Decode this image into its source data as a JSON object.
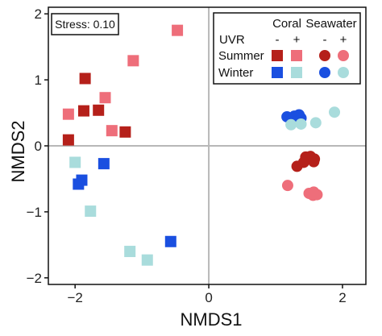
{
  "chart_data": {
    "type": "scatter",
    "title": "",
    "xlabel": "NMDS1",
    "ylabel": "NMDS2",
    "xlim": [
      -2.4,
      2.35
    ],
    "ylim": [
      -2.1,
      2.1
    ],
    "xticks": [
      -2,
      0,
      2
    ],
    "yticks": [
      -2,
      -1,
      0,
      1,
      2
    ],
    "tick_labels": {
      "x": [
        "−2",
        "0",
        "2"
      ],
      "y": [
        "−2",
        "−1",
        "0",
        "1",
        "2"
      ]
    },
    "grid": false,
    "reference_lines": {
      "x": 0,
      "y": 0
    },
    "annotation": "Stress: 0.10",
    "legend": {
      "placement": "top-right",
      "group_headers": [
        "Coral",
        "Seawater"
      ],
      "uvr_label": "UVR",
      "uvr_levels": [
        "-",
        "+"
      ],
      "season_labels": [
        "Summer",
        "Winter"
      ]
    },
    "colors": {
      "summer_uvr_minus": "#b5201a",
      "summer_uvr_plus": "#ee6e7a",
      "winter_uvr_minus": "#1a4fe0",
      "winter_uvr_plus": "#a9dcdc"
    },
    "series": [
      {
        "group": "Coral",
        "season": "Summer",
        "uvr": "-",
        "shape": "square",
        "color": "#b5201a",
        "points": [
          [
            -1.85,
            1.02
          ],
          [
            -1.87,
            0.53
          ],
          [
            -2.1,
            0.09
          ],
          [
            -1.65,
            0.54
          ],
          [
            -1.25,
            0.21
          ]
        ]
      },
      {
        "group": "Coral",
        "season": "Summer",
        "uvr": "+",
        "shape": "square",
        "color": "#ee6e7a",
        "points": [
          [
            -0.47,
            1.75
          ],
          [
            -1.13,
            1.29
          ],
          [
            -1.55,
            0.73
          ],
          [
            -2.1,
            0.48
          ],
          [
            -1.45,
            0.23
          ]
        ]
      },
      {
        "group": "Coral",
        "season": "Winter",
        "uvr": "-",
        "shape": "square",
        "color": "#1a4fe0",
        "points": [
          [
            -1.57,
            -0.27
          ],
          [
            -1.9,
            -0.52
          ],
          [
            -1.95,
            -0.58
          ],
          [
            -0.57,
            -1.45
          ]
        ]
      },
      {
        "group": "Coral",
        "season": "Winter",
        "uvr": "+",
        "shape": "square",
        "color": "#a9dcdc",
        "points": [
          [
            -2.0,
            -0.25
          ],
          [
            -1.77,
            -0.99
          ],
          [
            -1.18,
            -1.6
          ],
          [
            -0.92,
            -1.73
          ]
        ]
      },
      {
        "group": "Seawater",
        "season": "Summer",
        "uvr": "-",
        "shape": "circle",
        "color": "#b5201a",
        "points": [
          [
            1.32,
            -0.31
          ],
          [
            1.45,
            -0.17
          ],
          [
            1.52,
            -0.16
          ],
          [
            1.58,
            -0.2
          ],
          [
            1.42,
            -0.25
          ],
          [
            1.57,
            -0.24
          ]
        ]
      },
      {
        "group": "Seawater",
        "season": "Summer",
        "uvr": "+",
        "shape": "circle",
        "color": "#ee6e7a",
        "points": [
          [
            1.18,
            -0.6
          ],
          [
            1.5,
            -0.72
          ],
          [
            1.57,
            -0.7
          ],
          [
            1.62,
            -0.74
          ],
          [
            1.56,
            -0.75
          ]
        ]
      },
      {
        "group": "Seawater",
        "season": "Winter",
        "uvr": "-",
        "shape": "circle",
        "color": "#1a4fe0",
        "points": [
          [
            1.17,
            0.44
          ],
          [
            1.28,
            0.45
          ],
          [
            1.35,
            0.47
          ],
          [
            1.38,
            0.42
          ],
          [
            1.25,
            0.4
          ]
        ]
      },
      {
        "group": "Seawater",
        "season": "Winter",
        "uvr": "+",
        "shape": "circle",
        "color": "#a9dcdc",
        "points": [
          [
            1.88,
            0.51
          ],
          [
            1.6,
            0.35
          ],
          [
            1.38,
            0.33
          ],
          [
            1.23,
            0.32
          ]
        ]
      }
    ]
  }
}
